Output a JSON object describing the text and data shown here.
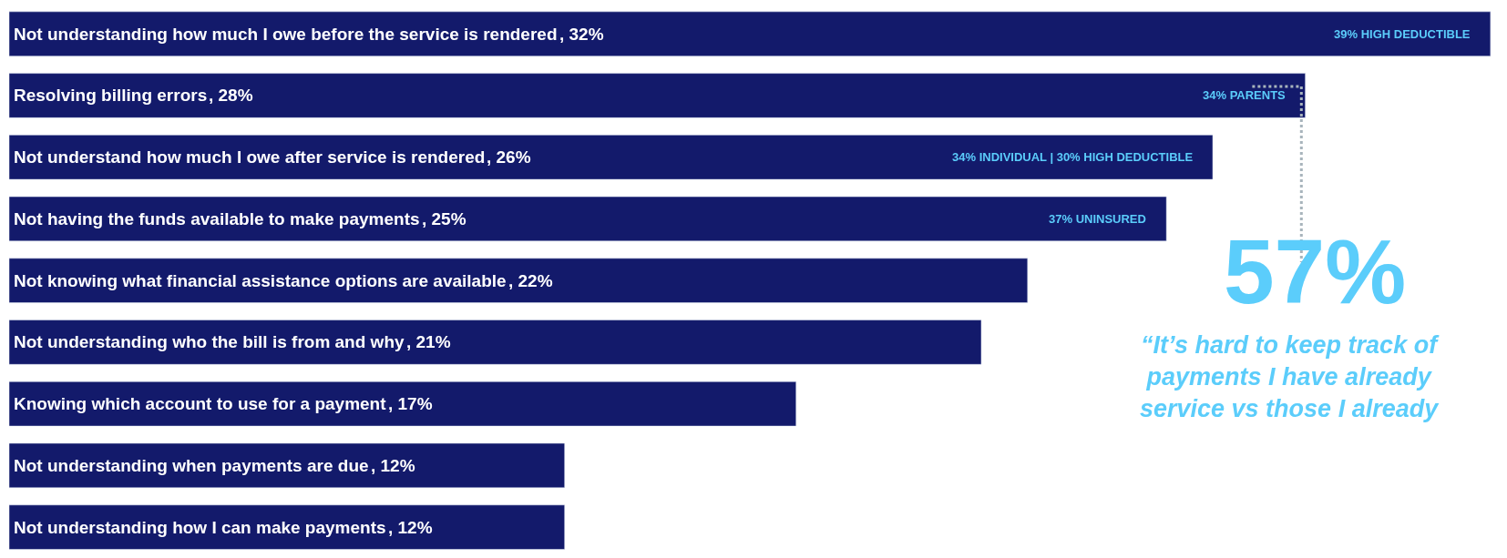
{
  "chart_data": {
    "type": "bar",
    "orientation": "horizontal",
    "categories": [
      "Not understanding how much I owe before the service is rendered",
      "Resolving billing errors",
      "Not understand how much I owe after service is rendered",
      "Not having the funds available to make payments",
      "Not knowing what financial assistance options are available",
      "Not understanding who the bill is from and why",
      "Knowing which account to use for a payment",
      "Not understanding when payments are due",
      "Not understanding how I can make payments"
    ],
    "values": [
      32,
      28,
      26,
      25,
      22,
      21,
      17,
      12,
      12
    ],
    "value_labels": [
      ", 32%",
      ", 28%",
      ", 26%",
      ", 25%",
      ", 22%",
      ", 21%",
      ", 17%",
      ", 12%",
      ", 12%"
    ],
    "color": "#131a6b",
    "annotations": [
      {
        "text": "39% HIGH DEDUCTIBLE",
        "x": 32,
        "y": "Not understanding how much I owe before the service is rendered"
      },
      {
        "text": "34% PARENTS",
        "x": 28,
        "y": "Resolving billing errors"
      },
      {
        "text": "34% INDIVIDUAL | 30% HIGH DEDUCTIBLE",
        "x": 26,
        "y": "Not understand how much I owe after service is rendered"
      },
      {
        "text": "37% UNINSURED",
        "x": 25,
        "y": "Not having the funds available to make payments"
      },
      "57%",
      "“It’s hard to keep track of\npayments I have already\nservice vs those I already"
    ]
  }
}
